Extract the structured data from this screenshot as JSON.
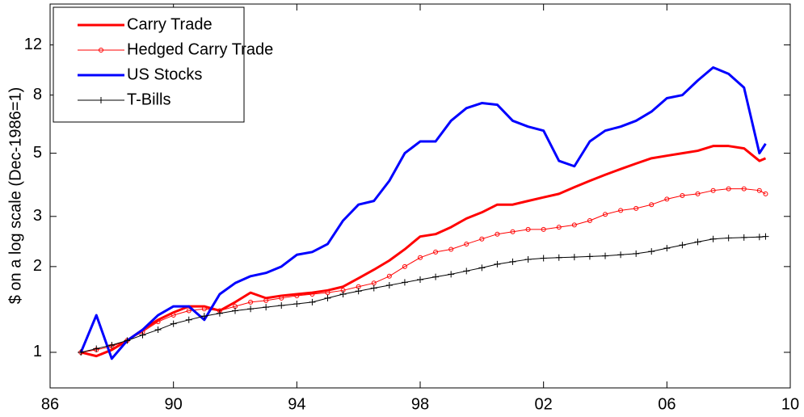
{
  "chart_data": {
    "type": "line",
    "ylabel": "$ on a log scale (Dec-1986=1)",
    "log_y": true,
    "legend": "upper left",
    "x": [
      1987.0,
      1987.5,
      1988.0,
      1988.5,
      1989.0,
      1989.5,
      1990.0,
      1990.5,
      1991.0,
      1991.5,
      1992.0,
      1992.5,
      1993.0,
      1993.5,
      1994.0,
      1994.5,
      1995.0,
      1995.5,
      1996.0,
      1996.5,
      1997.0,
      1997.5,
      1998.0,
      1998.5,
      1999.0,
      1999.5,
      2000.0,
      2000.5,
      2001.0,
      2001.5,
      2002.0,
      2002.5,
      2003.0,
      2003.5,
      2004.0,
      2004.5,
      2005.0,
      2005.5,
      2006.0,
      2006.5,
      2007.0,
      2007.5,
      2008.0,
      2008.5,
      2009.0,
      2009.2
    ],
    "series": [
      {
        "name": "Carry Trade",
        "color": "#ff0000",
        "width": 3,
        "marker": "none",
        "values": [
          1.0,
          0.97,
          1.02,
          1.1,
          1.2,
          1.3,
          1.38,
          1.45,
          1.45,
          1.4,
          1.5,
          1.62,
          1.55,
          1.58,
          1.6,
          1.62,
          1.65,
          1.7,
          1.82,
          1.95,
          2.1,
          2.3,
          2.55,
          2.6,
          2.75,
          2.95,
          3.1,
          3.3,
          3.3,
          3.4,
          3.5,
          3.6,
          3.8,
          4.0,
          4.2,
          4.4,
          4.6,
          4.8,
          4.9,
          5.0,
          5.1,
          5.3,
          5.3,
          5.2,
          4.7,
          4.8
        ]
      },
      {
        "name": "Hedged Carry Trade",
        "color": "#ff0000",
        "width": 1,
        "marker": "circle",
        "values": [
          1.0,
          1.02,
          1.05,
          1.1,
          1.18,
          1.28,
          1.35,
          1.4,
          1.42,
          1.4,
          1.45,
          1.5,
          1.52,
          1.55,
          1.58,
          1.6,
          1.62,
          1.65,
          1.7,
          1.75,
          1.85,
          2.0,
          2.15,
          2.25,
          2.3,
          2.4,
          2.5,
          2.6,
          2.65,
          2.7,
          2.7,
          2.75,
          2.8,
          2.9,
          3.05,
          3.15,
          3.2,
          3.3,
          3.45,
          3.55,
          3.6,
          3.7,
          3.75,
          3.75,
          3.7,
          3.6
        ]
      },
      {
        "name": "US Stocks",
        "color": "#0000ff",
        "width": 3,
        "marker": "none",
        "values": [
          1.0,
          1.35,
          0.95,
          1.1,
          1.2,
          1.35,
          1.45,
          1.45,
          1.3,
          1.6,
          1.75,
          1.85,
          1.9,
          2.0,
          2.2,
          2.25,
          2.4,
          2.9,
          3.3,
          3.4,
          4.0,
          5.0,
          5.5,
          5.5,
          6.5,
          7.2,
          7.5,
          7.4,
          6.5,
          6.2,
          6.0,
          4.7,
          4.5,
          5.5,
          6.0,
          6.2,
          6.5,
          7.0,
          7.8,
          8.0,
          9.0,
          10.0,
          9.5,
          8.5,
          5.0,
          5.4
        ]
      },
      {
        "name": "T-Bills",
        "color": "#000000",
        "width": 1,
        "marker": "plus",
        "values": [
          1.0,
          1.03,
          1.06,
          1.1,
          1.15,
          1.2,
          1.26,
          1.3,
          1.34,
          1.37,
          1.4,
          1.42,
          1.44,
          1.46,
          1.48,
          1.5,
          1.55,
          1.6,
          1.64,
          1.68,
          1.72,
          1.76,
          1.8,
          1.84,
          1.88,
          1.93,
          1.98,
          2.04,
          2.08,
          2.12,
          2.14,
          2.15,
          2.16,
          2.17,
          2.18,
          2.2,
          2.22,
          2.26,
          2.32,
          2.38,
          2.44,
          2.5,
          2.52,
          2.53,
          2.54,
          2.55
        ]
      }
    ],
    "xlim": [
      1986,
      2010
    ],
    "xticks": [
      {
        "value": 1986,
        "label": "86"
      },
      {
        "value": 1990,
        "label": "90"
      },
      {
        "value": 1994,
        "label": "94"
      },
      {
        "value": 1998,
        "label": "98"
      },
      {
        "value": 2002,
        "label": "02"
      },
      {
        "value": 2006,
        "label": "06"
      },
      {
        "value": 2010,
        "label": "10"
      }
    ],
    "ylim": [
      0.75,
      16.7
    ],
    "yticks": [
      1,
      2,
      3,
      5,
      8,
      12
    ]
  }
}
